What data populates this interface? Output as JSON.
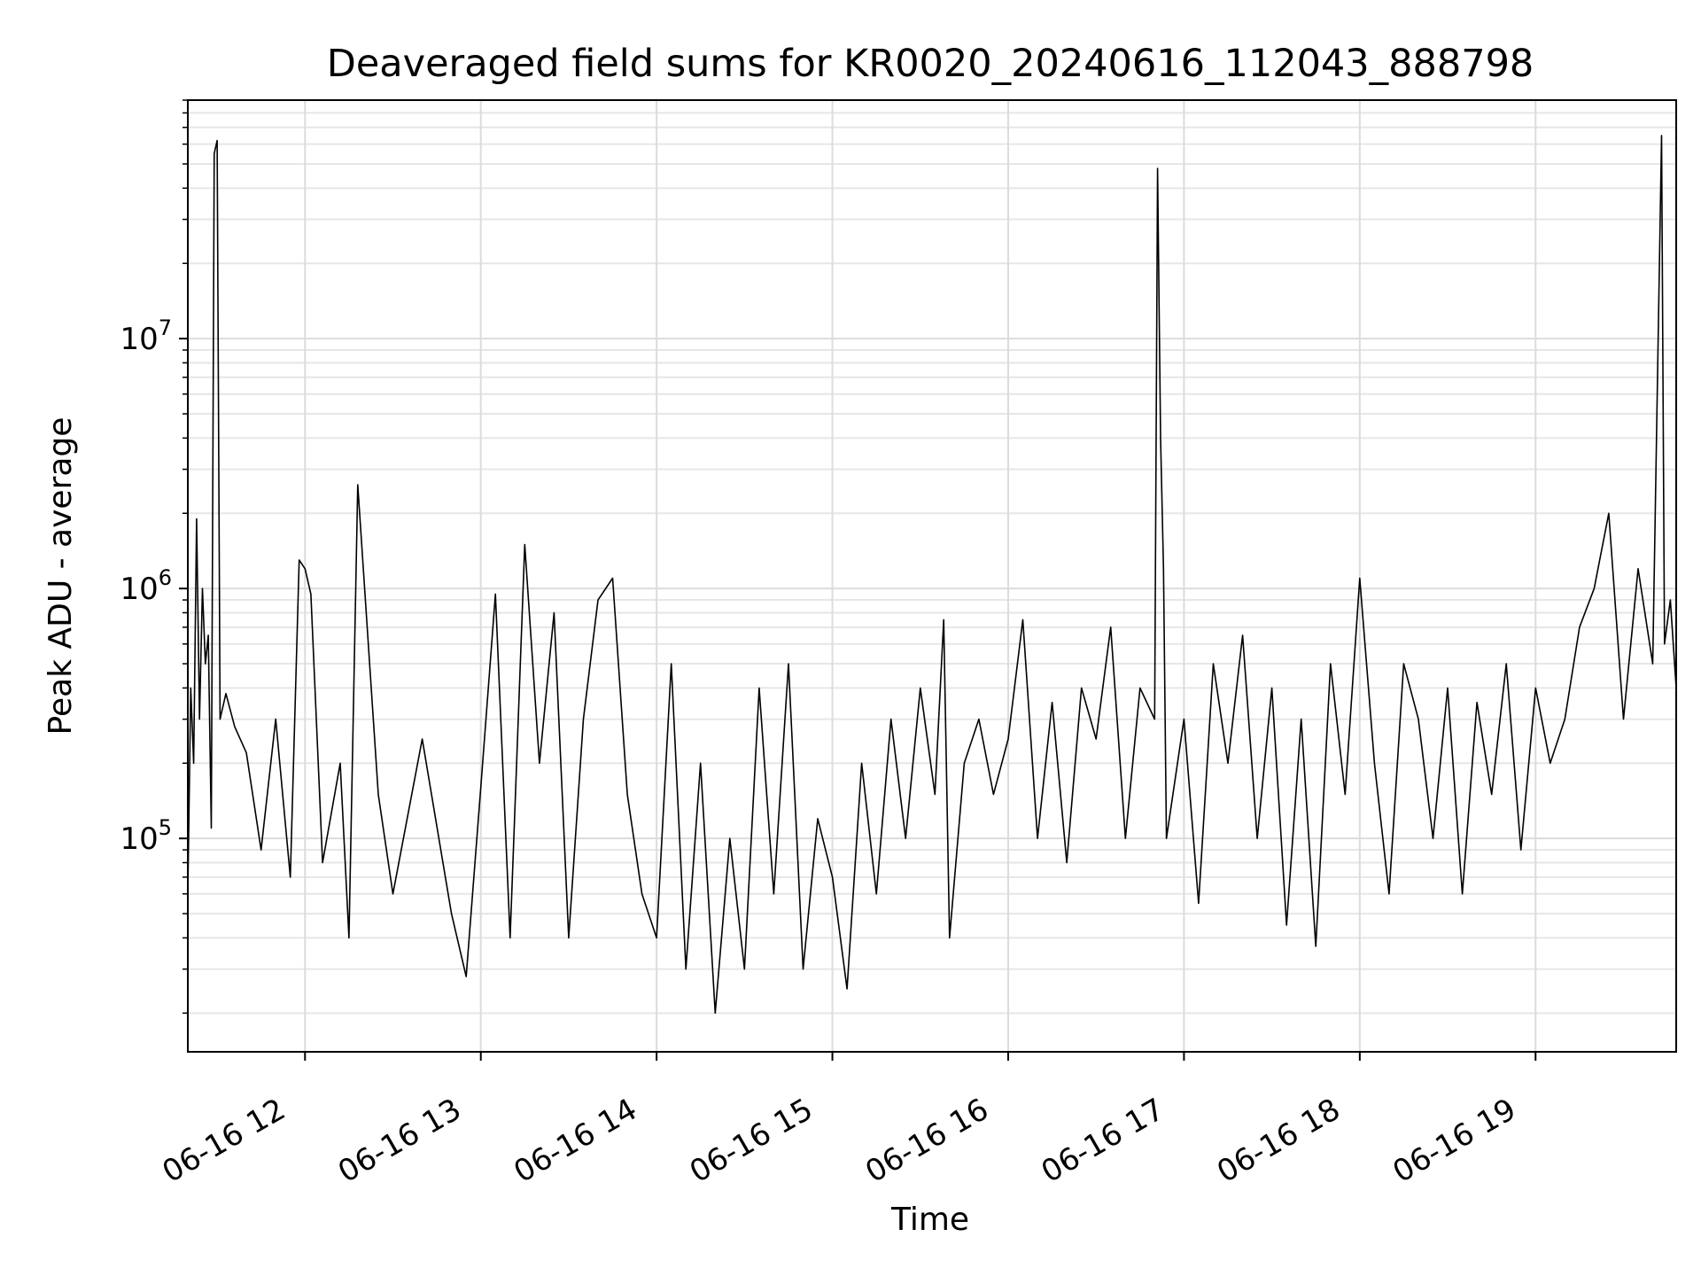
{
  "chart_data": {
    "type": "line",
    "title": "Deaveraged field sums for KR0020_20240616_112043_888798",
    "xlabel": "Time",
    "ylabel": "Peak ADU - average",
    "y_scale": "log",
    "xlim": [
      "2024-06-16T11:20",
      "2024-06-16T19:48"
    ],
    "ylim": [
      14000,
      90000000
    ],
    "x_ticks": [
      {
        "t": "2024-06-16T12:00",
        "label": "06-16 12"
      },
      {
        "t": "2024-06-16T13:00",
        "label": "06-16 13"
      },
      {
        "t": "2024-06-16T14:00",
        "label": "06-16 14"
      },
      {
        "t": "2024-06-16T15:00",
        "label": "06-16 15"
      },
      {
        "t": "2024-06-16T16:00",
        "label": "06-16 16"
      },
      {
        "t": "2024-06-16T17:00",
        "label": "06-16 17"
      },
      {
        "t": "2024-06-16T18:00",
        "label": "06-16 18"
      },
      {
        "t": "2024-06-16T19:00",
        "label": "06-16 19"
      }
    ],
    "y_ticks": [
      {
        "base": "10",
        "exp": "5",
        "value": 100000
      },
      {
        "base": "10",
        "exp": "6",
        "value": 1000000
      },
      {
        "base": "10",
        "exp": "7",
        "value": 10000000
      }
    ],
    "grid": "major and minor",
    "series": [
      {
        "color": "#000000",
        "points": [
          [
            "2024-06-16T11:20",
            60000
          ],
          [
            "2024-06-16T11:21",
            400000
          ],
          [
            "2024-06-16T11:22",
            200000
          ],
          [
            "2024-06-16T11:23",
            1900000
          ],
          [
            "2024-06-16T11:24",
            300000
          ],
          [
            "2024-06-16T11:25",
            1000000
          ],
          [
            "2024-06-16T11:26",
            500000
          ],
          [
            "2024-06-16T11:27",
            650000
          ],
          [
            "2024-06-16T11:28",
            110000
          ],
          [
            "2024-06-16T11:29",
            55000000
          ],
          [
            "2024-06-16T11:30",
            62000000
          ],
          [
            "2024-06-16T11:31",
            300000
          ],
          [
            "2024-06-16T11:33",
            380000
          ],
          [
            "2024-06-16T11:36",
            280000
          ],
          [
            "2024-06-16T11:40",
            220000
          ],
          [
            "2024-06-16T11:45",
            90000
          ],
          [
            "2024-06-16T11:50",
            300000
          ],
          [
            "2024-06-16T11:55",
            70000
          ],
          [
            "2024-06-16T11:58",
            1300000
          ],
          [
            "2024-06-16T12:00",
            1200000
          ],
          [
            "2024-06-16T12:02",
            950000
          ],
          [
            "2024-06-16T12:06",
            80000
          ],
          [
            "2024-06-16T12:12",
            200000
          ],
          [
            "2024-06-16T12:15",
            40000
          ],
          [
            "2024-06-16T12:18",
            2600000
          ],
          [
            "2024-06-16T12:25",
            150000
          ],
          [
            "2024-06-16T12:30",
            60000
          ],
          [
            "2024-06-16T12:40",
            250000
          ],
          [
            "2024-06-16T12:50",
            50000
          ],
          [
            "2024-06-16T12:55",
            28000
          ],
          [
            "2024-06-16T13:00",
            160000
          ],
          [
            "2024-06-16T13:05",
            950000
          ],
          [
            "2024-06-16T13:10",
            40000
          ],
          [
            "2024-06-16T13:15",
            1500000
          ],
          [
            "2024-06-16T13:20",
            200000
          ],
          [
            "2024-06-16T13:25",
            800000
          ],
          [
            "2024-06-16T13:30",
            40000
          ],
          [
            "2024-06-16T13:35",
            300000
          ],
          [
            "2024-06-16T13:40",
            900000
          ],
          [
            "2024-06-16T13:45",
            1100000
          ],
          [
            "2024-06-16T13:50",
            150000
          ],
          [
            "2024-06-16T13:55",
            60000
          ],
          [
            "2024-06-16T14:00",
            40000
          ],
          [
            "2024-06-16T14:05",
            500000
          ],
          [
            "2024-06-16T14:10",
            30000
          ],
          [
            "2024-06-16T14:15",
            200000
          ],
          [
            "2024-06-16T14:20",
            20000
          ],
          [
            "2024-06-16T14:25",
            100000
          ],
          [
            "2024-06-16T14:30",
            30000
          ],
          [
            "2024-06-16T14:35",
            400000
          ],
          [
            "2024-06-16T14:40",
            60000
          ],
          [
            "2024-06-16T14:45",
            500000
          ],
          [
            "2024-06-16T14:50",
            30000
          ],
          [
            "2024-06-16T14:55",
            120000
          ],
          [
            "2024-06-16T15:00",
            70000
          ],
          [
            "2024-06-16T15:05",
            25000
          ],
          [
            "2024-06-16T15:10",
            200000
          ],
          [
            "2024-06-16T15:15",
            60000
          ],
          [
            "2024-06-16T15:20",
            300000
          ],
          [
            "2024-06-16T15:25",
            100000
          ],
          [
            "2024-06-16T15:30",
            400000
          ],
          [
            "2024-06-16T15:35",
            150000
          ],
          [
            "2024-06-16T15:38",
            750000
          ],
          [
            "2024-06-16T15:40",
            40000
          ],
          [
            "2024-06-16T15:45",
            200000
          ],
          [
            "2024-06-16T15:50",
            300000
          ],
          [
            "2024-06-16T15:55",
            150000
          ],
          [
            "2024-06-16T16:00",
            250000
          ],
          [
            "2024-06-16T16:05",
            750000
          ],
          [
            "2024-06-16T16:10",
            100000
          ],
          [
            "2024-06-16T16:15",
            350000
          ],
          [
            "2024-06-16T16:20",
            80000
          ],
          [
            "2024-06-16T16:25",
            400000
          ],
          [
            "2024-06-16T16:30",
            250000
          ],
          [
            "2024-06-16T16:35",
            700000
          ],
          [
            "2024-06-16T16:40",
            100000
          ],
          [
            "2024-06-16T16:45",
            400000
          ],
          [
            "2024-06-16T16:50",
            300000
          ],
          [
            "2024-06-16T16:51",
            48000000
          ],
          [
            "2024-06-16T16:52",
            4000000
          ],
          [
            "2024-06-16T16:53",
            1200000
          ],
          [
            "2024-06-16T16:54",
            100000
          ],
          [
            "2024-06-16T17:00",
            300000
          ],
          [
            "2024-06-16T17:05",
            55000
          ],
          [
            "2024-06-16T17:10",
            500000
          ],
          [
            "2024-06-16T17:15",
            200000
          ],
          [
            "2024-06-16T17:20",
            650000
          ],
          [
            "2024-06-16T17:25",
            100000
          ],
          [
            "2024-06-16T17:30",
            400000
          ],
          [
            "2024-06-16T17:35",
            45000
          ],
          [
            "2024-06-16T17:40",
            300000
          ],
          [
            "2024-06-16T17:45",
            37000
          ],
          [
            "2024-06-16T17:50",
            500000
          ],
          [
            "2024-06-16T17:55",
            150000
          ],
          [
            "2024-06-16T18:00",
            1100000
          ],
          [
            "2024-06-16T18:05",
            200000
          ],
          [
            "2024-06-16T18:10",
            60000
          ],
          [
            "2024-06-16T18:15",
            500000
          ],
          [
            "2024-06-16T18:20",
            300000
          ],
          [
            "2024-06-16T18:25",
            100000
          ],
          [
            "2024-06-16T18:30",
            400000
          ],
          [
            "2024-06-16T18:35",
            60000
          ],
          [
            "2024-06-16T18:40",
            350000
          ],
          [
            "2024-06-16T18:45",
            150000
          ],
          [
            "2024-06-16T18:50",
            500000
          ],
          [
            "2024-06-16T18:55",
            90000
          ],
          [
            "2024-06-16T19:00",
            400000
          ],
          [
            "2024-06-16T19:05",
            200000
          ],
          [
            "2024-06-16T19:10",
            300000
          ],
          [
            "2024-06-16T19:15",
            700000
          ],
          [
            "2024-06-16T19:20",
            1000000
          ],
          [
            "2024-06-16T19:25",
            2000000
          ],
          [
            "2024-06-16T19:30",
            300000
          ],
          [
            "2024-06-16T19:35",
            1200000
          ],
          [
            "2024-06-16T19:40",
            500000
          ],
          [
            "2024-06-16T19:43",
            65000000
          ],
          [
            "2024-06-16T19:44",
            600000
          ],
          [
            "2024-06-16T19:46",
            900000
          ],
          [
            "2024-06-16T19:48",
            400000
          ]
        ]
      }
    ]
  }
}
